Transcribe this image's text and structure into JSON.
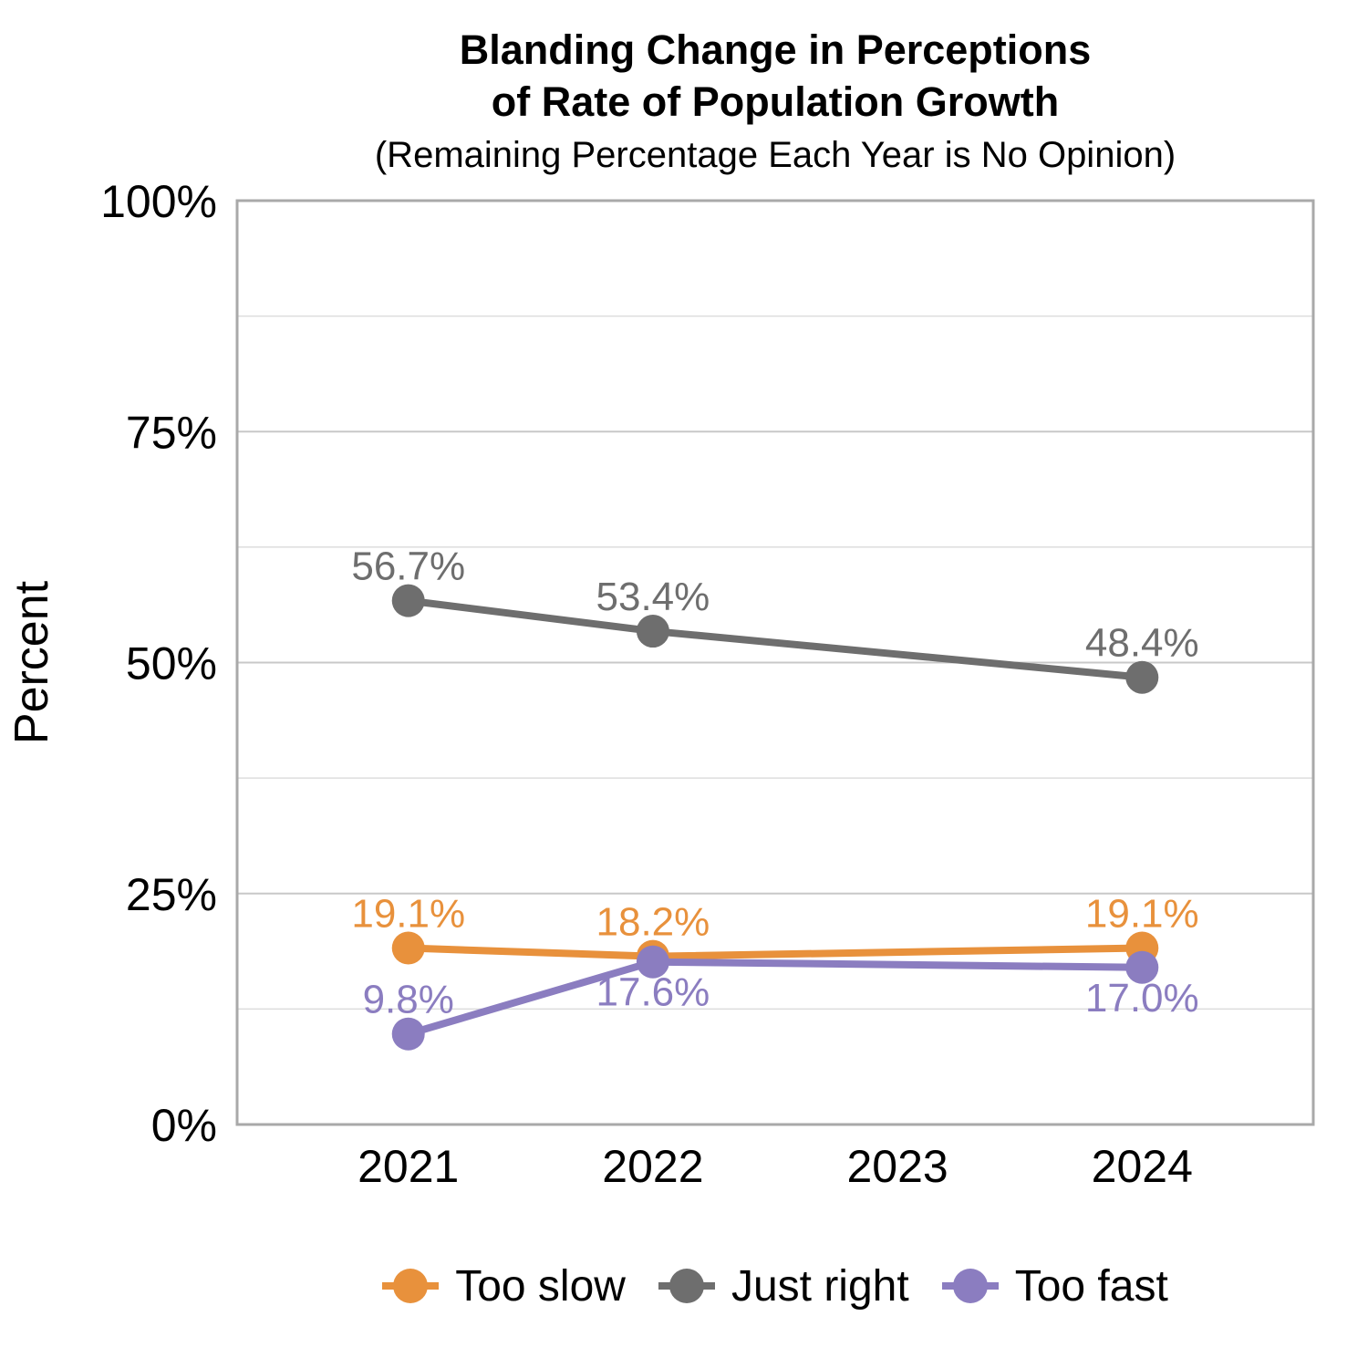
{
  "chart": {
    "title": "Blanding Change in Perceptions\nof Rate of Population Growth",
    "subtitle": "(Remaining Percentage Each Year is No Opinion)",
    "ylabel": "Percent"
  },
  "chart_data": {
    "type": "line",
    "title": "Blanding Change in Perceptions of Rate of Population Growth",
    "subtitle": "(Remaining Percentage Each Year is No Opinion)",
    "xlabel": "",
    "ylabel": "Percent",
    "x_tick_values": [
      2021,
      2022,
      2023,
      2024
    ],
    "x_tick_labels": [
      "2021",
      "2022",
      "2023",
      "2024"
    ],
    "xlim": [
      2020.3,
      2024.7
    ],
    "ylim": [
      0,
      100
    ],
    "y_tick_values": [
      0,
      25,
      50,
      75,
      100
    ],
    "y_tick_labels": [
      "0%",
      "25%",
      "50%",
      "75%",
      "100%"
    ],
    "y_minor_gridlines": [
      12.5,
      37.5,
      62.5,
      87.5
    ],
    "grid": "horizontal-only",
    "legend_position": "bottom",
    "series": [
      {
        "name": "Too slow",
        "color": "#E8913C",
        "x": [
          2021,
          2022,
          2024
        ],
        "values": [
          19.1,
          18.2,
          19.1
        ],
        "point_labels": [
          "19.1%",
          "18.2%",
          "19.1%"
        ],
        "label_placement": [
          "above",
          "above",
          "above"
        ]
      },
      {
        "name": "Just right",
        "color": "#6E6E6E",
        "x": [
          2021,
          2022,
          2024
        ],
        "values": [
          56.7,
          53.4,
          48.4
        ],
        "point_labels": [
          "56.7%",
          "53.4%",
          "48.4%"
        ],
        "label_placement": [
          "above",
          "above",
          "above"
        ]
      },
      {
        "name": "Too fast",
        "color": "#8B7DC0",
        "x": [
          2021,
          2022,
          2024
        ],
        "values": [
          9.8,
          17.6,
          17.0
        ],
        "point_labels": [
          "9.8%",
          "17.6%",
          "17.0%"
        ],
        "label_placement": [
          "above",
          "below",
          "below"
        ]
      }
    ],
    "style": {
      "background": "#FFFFFF",
      "text_color": "#000000",
      "major_grid_color": "#C8C8C8",
      "minor_grid_color": "#DDDDDD",
      "panel_border_color": "#A9A9A9"
    }
  }
}
